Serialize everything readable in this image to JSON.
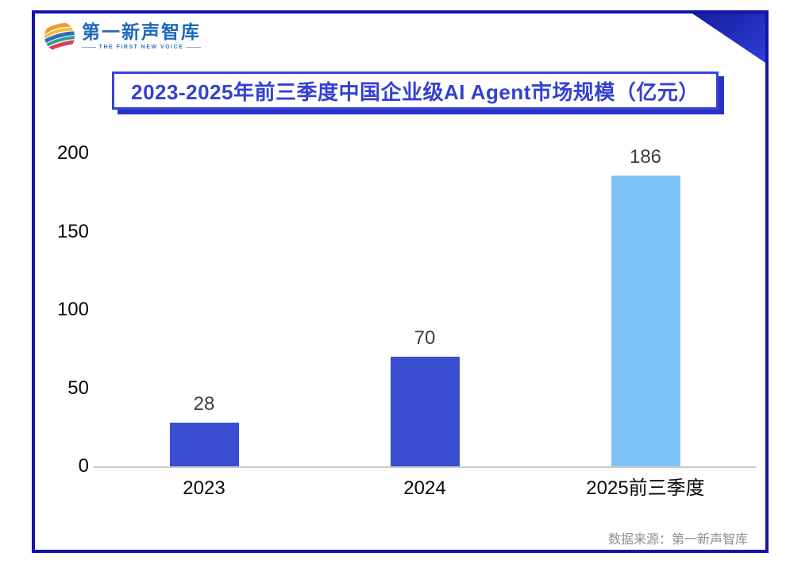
{
  "brand": {
    "name": "第一新声智库",
    "tagline": "THE FIRST NEW VOICE",
    "icon": "ribbon-globe-icon"
  },
  "header": {
    "title": "2023-2025年前三季度中国企业级AI Agent市场规模（亿元）"
  },
  "footer": {
    "source_note": "数据来源：第一新声智库"
  },
  "colors": {
    "frame_border": "#1215a8",
    "corner_triangle_dark": "#171d9e",
    "corner_triangle_light": "#2c3fd6",
    "title_text": "#3441d1",
    "title_border": "#3945d2",
    "title_shadow": "#2633c6",
    "bar_dark_blue": "#3a4ed2",
    "bar_light_blue": "#7ec3f7",
    "axis_line": "#cbcbcb",
    "value_label": "#3d3d3d",
    "tick_label": "#0a0a0a",
    "logo_blue": "#1e68bd",
    "source_gray": "#8f8f8f"
  },
  "chart_data": {
    "type": "bar",
    "title": "2023-2025年前三季度中国企业级AI Agent市场规模（亿元）",
    "unit": "亿元",
    "categories": [
      "2023",
      "2024",
      "2025前三季度"
    ],
    "values": [
      28,
      70,
      186
    ],
    "bar_colors": [
      "#3a4ed2",
      "#3a4ed2",
      "#7ec3f7"
    ],
    "yticks": [
      0,
      50,
      100,
      150,
      200
    ],
    "ylim": [
      0,
      200
    ],
    "grid": false,
    "legend": false,
    "value_labels": true
  }
}
